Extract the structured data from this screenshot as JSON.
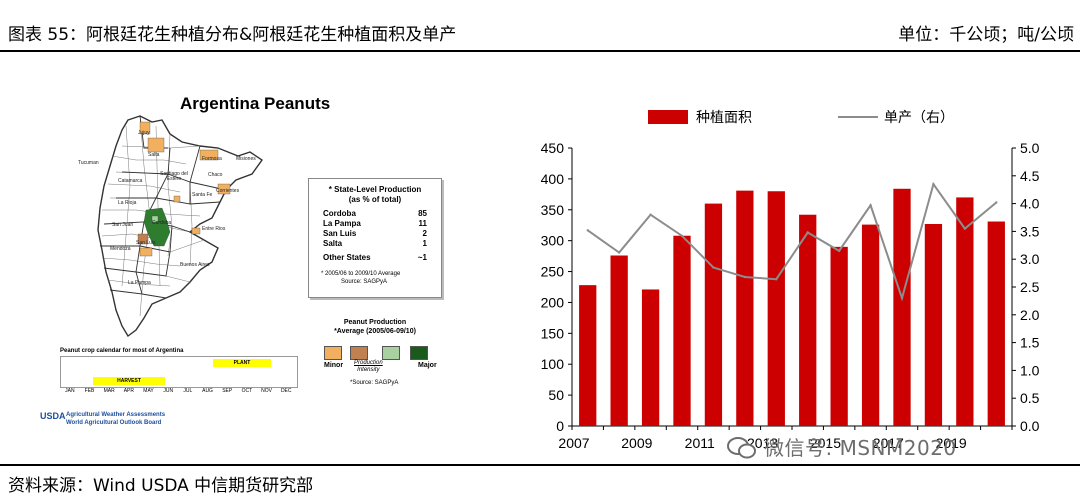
{
  "header": {
    "title": "图表 55：阿根廷花生种植分布&阿根廷花生种植面积及单产",
    "unit": "单位：千公顷；吨/公顷"
  },
  "footer": {
    "source": "资料来源：Wind USDA 中信期货研究部"
  },
  "map_panel": {
    "title": "Argentina Peanuts",
    "province_labels": [
      "Jujuy",
      "Salta",
      "Tucuman",
      "Formosa",
      "Misiones",
      "Catamarca",
      "Santiago del Estero",
      "Chaco",
      "La Rioja",
      "Santa Fe",
      "Corrientes",
      "San Juan",
      "Cordoba",
      "Entre Rios",
      "Mendoza",
      "San Luis",
      "Buenos Aires",
      "La Pampa"
    ],
    "production_box": {
      "title_line1": "* State-Level Production",
      "title_line2": "(as % of total)",
      "rows": [
        {
          "state": "Cordoba",
          "value": "85"
        },
        {
          "state": "La Pampa",
          "value": "11"
        },
        {
          "state": "San Luis",
          "value": "2"
        },
        {
          "state": "Salta",
          "value": "1"
        },
        {
          "state": "Other States",
          "value": "~1"
        }
      ],
      "note": "* 2005/06 to 2009/10 Average",
      "source": "Source: SAGPyA"
    },
    "legend": {
      "title_line1": "Peanut Production",
      "title_line2": "*Average (2005/06-09/10)",
      "minor": "Minor",
      "major": "Major",
      "axis_line1": "Production",
      "axis_line2": "Intensity",
      "source": "*Source: SAGPyA",
      "colors": [
        "#f0b060",
        "#c08050",
        "#a8d0a0",
        "#1a5a1a"
      ]
    },
    "calendar": {
      "title": "Peanut crop calendar for most of Argentina",
      "plant_label": "PLANT",
      "harvest_label": "HARVEST",
      "months": [
        "JAN",
        "FEB",
        "MAR",
        "APR",
        "MAY",
        "JUN",
        "JUL",
        "AUG",
        "SEP",
        "OCT",
        "NOV",
        "DEC"
      ]
    },
    "usda": {
      "logo": "USDA",
      "line1": "Agricultural Weather Assessments",
      "line2": "World Agricultural Outlook Board"
    }
  },
  "chart_data": {
    "type": "bar+line",
    "categories": [
      "2007",
      "2008",
      "2009",
      "2010",
      "2011",
      "2012",
      "2013",
      "2014",
      "2015",
      "2016",
      "2017",
      "2018",
      "2019",
      "2020"
    ],
    "x_tick_labels": [
      "2007",
      "2009",
      "2011",
      "2013",
      "2015",
      "2017",
      "2019"
    ],
    "series": [
      {
        "name": "种植面积",
        "type": "bar",
        "axis": "left",
        "color": "#cc0000",
        "values": [
          228,
          276,
          221,
          308,
          360,
          381,
          380,
          342,
          290,
          326,
          384,
          327,
          370,
          331
        ]
      },
      {
        "name": "单产（右）",
        "type": "line",
        "axis": "right",
        "color": "#8c8c8c",
        "values": [
          3.52,
          3.12,
          3.8,
          3.42,
          2.85,
          2.68,
          2.64,
          3.48,
          3.15,
          3.97,
          2.3,
          4.35,
          3.55,
          4.02
        ]
      }
    ],
    "yleft": {
      "min": 0,
      "max": 450,
      "step": 50
    },
    "yright": {
      "min": 0,
      "max": 5,
      "step": 0.5
    },
    "legend_position": "top"
  },
  "watermark": "微信号: MSNM2020"
}
